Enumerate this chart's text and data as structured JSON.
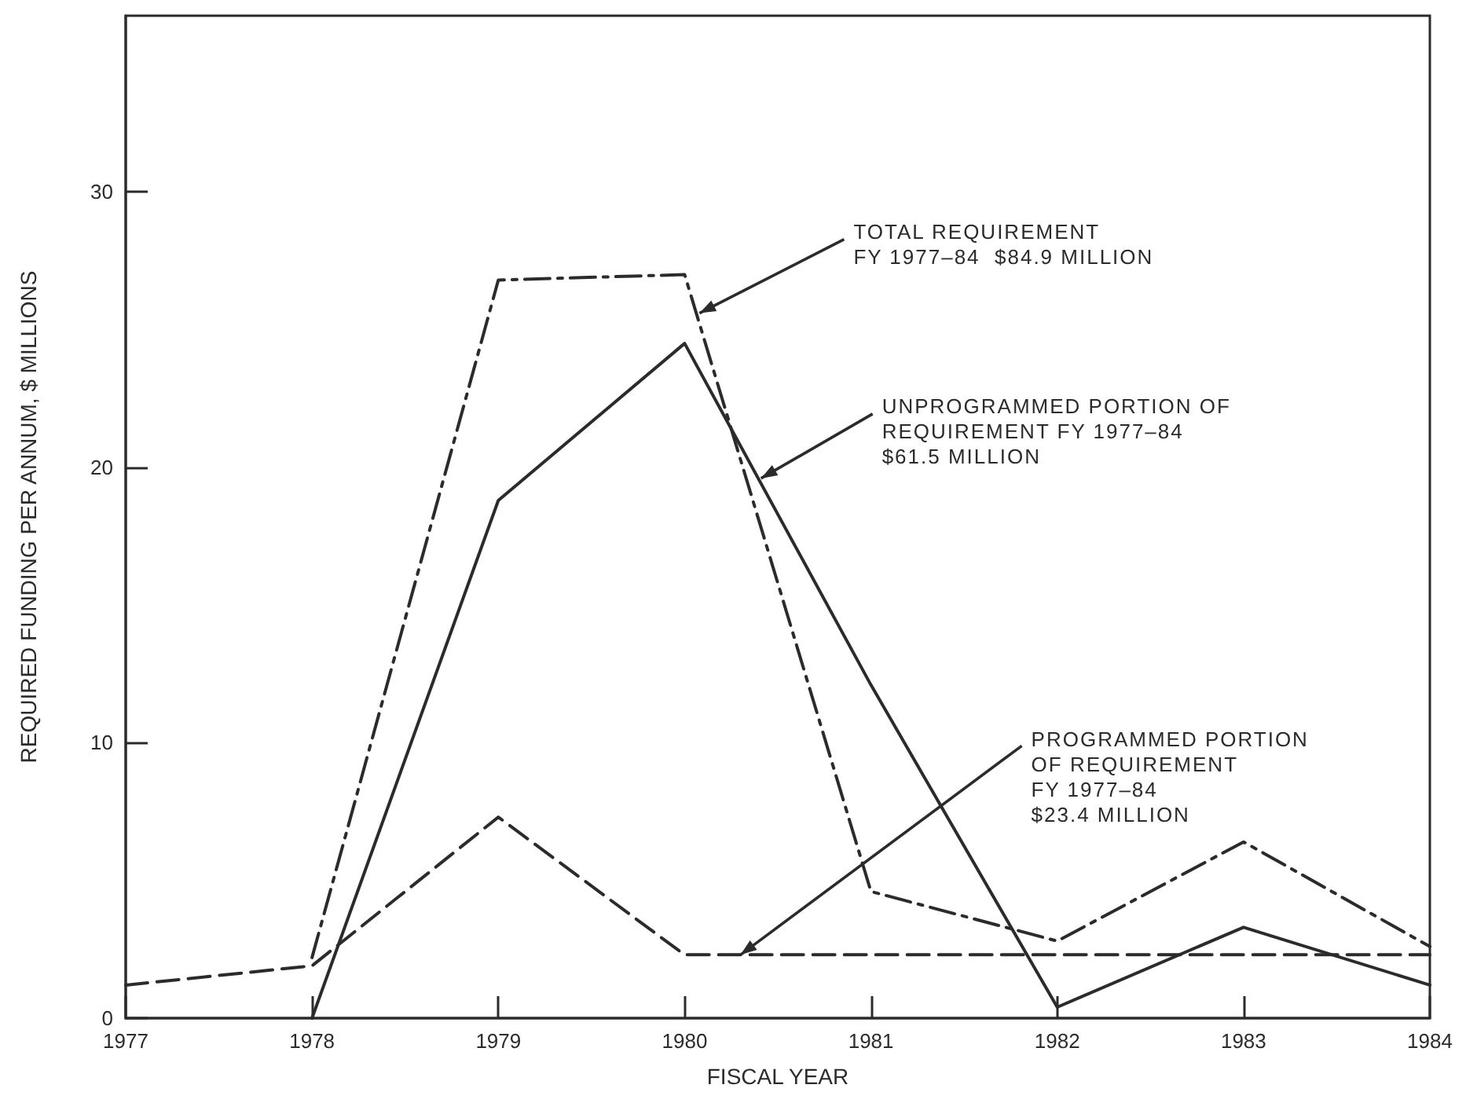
{
  "chart_data": {
    "type": "line",
    "xlabel": "FISCAL YEAR",
    "ylabel": "REQUIRED FUNDING PER ANNUM, $ MILLIONS",
    "x": [
      1977,
      1978,
      1979,
      1980,
      1981,
      1982,
      1983,
      1984
    ],
    "series": [
      {
        "color": "#2b2b2b",
        "line_style": "dashdot",
        "values": [
          null,
          2.2,
          26.8,
          27.0,
          4.6,
          2.8,
          6.4,
          2.6
        ]
      },
      {
        "color": "#2b2b2b",
        "line_style": "solid",
        "values": [
          null,
          0,
          18.8,
          24.5,
          12.1,
          0.4,
          3.3,
          1.2
        ]
      },
      {
        "color": "#2b2b2b",
        "line_style": "dashed",
        "values": [
          1.2,
          1.9,
          7.3,
          2.3,
          2.3,
          2.3,
          2.3,
          2.3
        ]
      }
    ],
    "annotations": [
      {
        "text": "TOTAL REQUIREMENT\nFY 1977–84  $84.9 MILLION",
        "x": 1980.08,
        "y": 25.6
      },
      {
        "text": "UNPROGRAMMED PORTION OF\nREQUIREMENT FY 1977–84\n$61.5 MILLION",
        "x": 1980.41,
        "y": 19.6
      },
      {
        "text": "PROGRAMMED PORTION\nOF REQUIREMENT\nFY 1977–84\n$23.4 MILLION",
        "x": 1980.3,
        "y": 2.3
      }
    ],
    "xlim": [
      1977,
      1984
    ],
    "xticks": [
      1977,
      1978,
      1979,
      1980,
      1981,
      1982,
      1983,
      1984
    ],
    "ylim": [
      0,
      36.4
    ],
    "yticks": [
      0,
      10,
      20,
      30
    ],
    "grid": false,
    "marker": "none"
  }
}
